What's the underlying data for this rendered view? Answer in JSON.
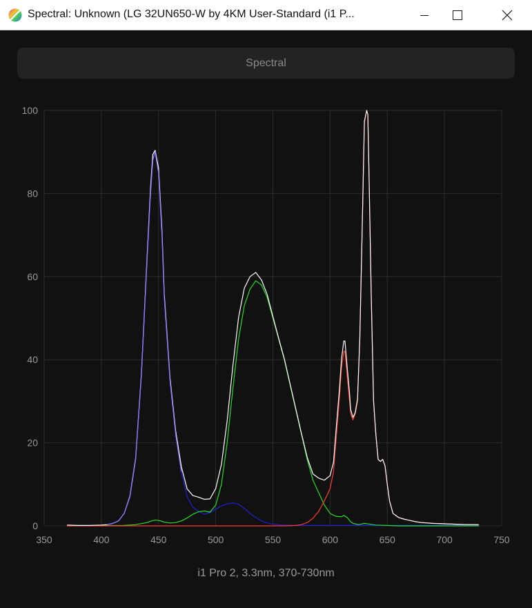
{
  "window": {
    "title": "Spectral: Unknown (LG 32UN650-W by 4KM User-Standard (i1 P...",
    "app_icon": "spectral-app-icon",
    "minimize_icon": "minimize-icon",
    "maximize_icon": "maximize-icon",
    "close_icon": "close-icon"
  },
  "tab": {
    "label": "Spectral"
  },
  "caption": "i1 Pro 2, 3.3nm, 370-730nm",
  "colors": {
    "background": "#111111",
    "grid": "#2c2c2c",
    "white_series": "#ffffff",
    "red_series": "#ff3b30",
    "green_series": "#2bdc2b",
    "blue_series": "#2020d8",
    "blue_peak_overlay": "#8a6cff"
  },
  "chart_data": {
    "type": "line",
    "xlim": [
      350,
      750
    ],
    "ylim": [
      0,
      100
    ],
    "x_ticks": [
      350,
      400,
      450,
      500,
      550,
      600,
      650,
      700,
      750
    ],
    "y_ticks": [
      0,
      20,
      40,
      60,
      80,
      100
    ],
    "grid": true,
    "series": [
      {
        "color": "#2020d8",
        "x": [
          370,
          380,
          390,
          400,
          405,
          410,
          415,
          420,
          425,
          430,
          435,
          440,
          443,
          445,
          447,
          450,
          453,
          455,
          460,
          465,
          470,
          475,
          480,
          485,
          490,
          495,
          500,
          505,
          510,
          515,
          520,
          525,
          530,
          535,
          540,
          545,
          550,
          560,
          570,
          580,
          600,
          620,
          640,
          660,
          680,
          700,
          730
        ],
        "y": [
          0.2,
          0.1,
          0.1,
          0.2,
          0.3,
          0.6,
          1.2,
          3.0,
          7.0,
          16,
          36,
          64,
          80,
          88,
          90,
          85,
          70,
          55,
          35,
          22,
          13,
          7,
          4.5,
          3.5,
          2.8,
          3.2,
          4.0,
          4.8,
          5.3,
          5.5,
          5.2,
          4.2,
          3.0,
          2.0,
          1.2,
          0.7,
          0.4,
          0.2,
          0.1,
          0.1,
          0.1,
          0.1,
          0.1,
          0.1,
          0.1,
          0.1,
          0.1
        ]
      },
      {
        "color": "#2bdc2b",
        "x": [
          370,
          420,
          430,
          440,
          445,
          448,
          452,
          455,
          460,
          465,
          470,
          475,
          480,
          485,
          490,
          495,
          500,
          505,
          510,
          515,
          520,
          525,
          530,
          535,
          540,
          545,
          550,
          555,
          560,
          565,
          570,
          575,
          580,
          585,
          590,
          595,
          600,
          605,
          610,
          612,
          615,
          618,
          620,
          625,
          630,
          635,
          640,
          650,
          660,
          700,
          730
        ],
        "y": [
          0,
          0.1,
          0.3,
          0.8,
          1.3,
          1.4,
          1.2,
          0.9,
          0.7,
          0.8,
          1.2,
          1.9,
          2.8,
          3.4,
          3.6,
          3.3,
          5.0,
          10,
          20,
          33,
          45,
          53,
          57,
          59,
          58,
          55,
          50,
          45,
          40,
          34,
          28,
          22,
          16,
          11,
          8,
          5,
          3,
          2.3,
          2.2,
          2.5,
          2,
          1,
          0.6,
          0.3,
          0.6,
          0.4,
          0.2,
          0.1,
          0,
          0,
          0
        ]
      },
      {
        "color": "#ff3b30",
        "x": [
          370,
          560,
          570,
          575,
          580,
          585,
          590,
          595,
          600,
          603,
          605,
          608,
          610,
          612,
          613,
          615,
          617,
          618,
          620,
          622,
          624,
          626,
          628,
          630,
          632,
          633,
          634,
          636,
          638,
          640,
          642,
          644,
          646,
          648,
          650,
          652,
          655,
          660,
          665,
          670,
          675,
          680,
          690,
          700,
          710,
          720,
          730
        ],
        "y": [
          0,
          0,
          0.1,
          0.3,
          0.8,
          1.8,
          3.5,
          6,
          9,
          13,
          20,
          30,
          38,
          42,
          42,
          36,
          30,
          27,
          25.5,
          27,
          30,
          45,
          70,
          97,
          100,
          99,
          85,
          55,
          30,
          22,
          16,
          15.5,
          16,
          14.5,
          10,
          6,
          3,
          2,
          1.6,
          1.3,
          1.0,
          0.8,
          0.6,
          0.5,
          0.4,
          0.3,
          0.3
        ]
      },
      {
        "color": "#ffffff",
        "x": [
          370,
          380,
          390,
          400,
          405,
          410,
          415,
          420,
          425,
          430,
          435,
          440,
          443,
          445,
          447,
          450,
          453,
          455,
          460,
          465,
          470,
          475,
          480,
          485,
          490,
          495,
          500,
          505,
          510,
          515,
          520,
          525,
          530,
          535,
          540,
          545,
          550,
          555,
          560,
          565,
          570,
          575,
          580,
          585,
          590,
          595,
          600,
          603,
          605,
          608,
          610,
          612,
          613,
          615,
          617,
          618,
          620,
          622,
          624,
          626,
          628,
          630,
          632,
          633,
          634,
          636,
          638,
          640,
          642,
          644,
          646,
          648,
          650,
          652,
          655,
          660,
          665,
          670,
          675,
          680,
          690,
          700,
          710,
          720,
          730
        ],
        "y": [
          0.2,
          0.1,
          0.1,
          0.2,
          0.3,
          0.6,
          1.2,
          3.0,
          7.2,
          16.3,
          36.5,
          64.8,
          81.3,
          89.4,
          90.4,
          86.2,
          71.2,
          55.9,
          35.7,
          22.8,
          14.2,
          8.9,
          7.3,
          6.9,
          6.4,
          6.5,
          9.0,
          14.8,
          25.3,
          38.5,
          50.2,
          57.2,
          60.0,
          61.0,
          59.2,
          55.7,
          50.4,
          45.2,
          40.2,
          34.2,
          28.2,
          22.2,
          16.5,
          12.5,
          11.5,
          11.0,
          12.1,
          15.3,
          22.3,
          32.3,
          40.2,
          44.5,
          44.5,
          38,
          32,
          28,
          26.1,
          27.3,
          30.6,
          45.3,
          70.6,
          97.4,
          100,
          99,
          85.2,
          55.4,
          30.2,
          22.1,
          16,
          15.5,
          16,
          14.5,
          10,
          6,
          3,
          2,
          1.6,
          1.3,
          1.0,
          0.8,
          0.6,
          0.5,
          0.4,
          0.3,
          0.3
        ]
      }
    ]
  }
}
